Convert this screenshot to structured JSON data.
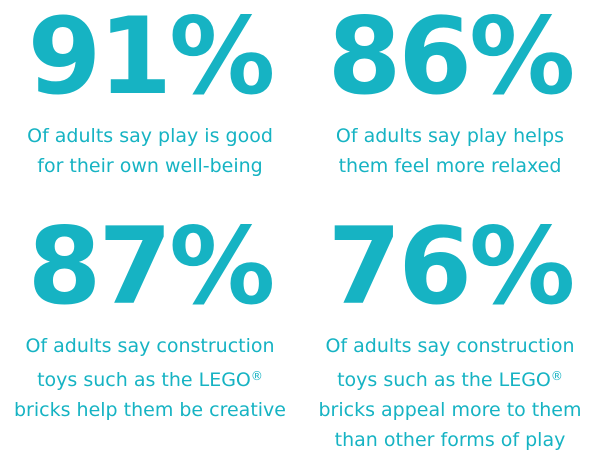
{
  "accent_color": "#16b3c3",
  "stats": [
    {
      "value": "91%",
      "lines": [
        "Of adults say play is good",
        "for their own well-being"
      ]
    },
    {
      "value": "86%",
      "lines": [
        "Of adults say play helps",
        "them feel more relaxed"
      ]
    },
    {
      "value": "87%",
      "lines": [
        "Of adults say construction",
        "toys such as the LEGO",
        "bricks help them be creative"
      ],
      "registered_mark": "®"
    },
    {
      "value": "76%",
      "lines": [
        "Of adults say construction",
        "toys such as the LEGO",
        "bricks appeal more to them",
        "than other forms of play"
      ],
      "registered_mark": "®"
    }
  ]
}
